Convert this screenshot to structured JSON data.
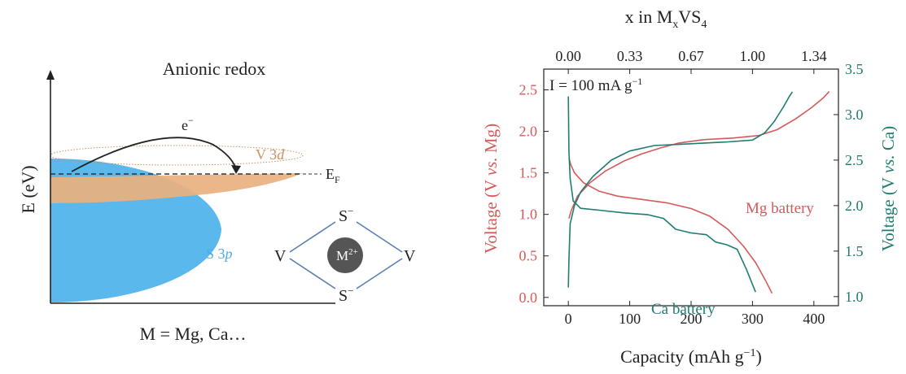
{
  "diagram": {
    "title": "Anionic redox",
    "ylabel": "E (eV)",
    "xlabel": "M = Mg, Ca…",
    "electron_label": "e",
    "electron_sup": "−",
    "v3d_label_main": "V 3",
    "v3d_label_italic": "d",
    "s3p_label_main": "S 3",
    "s3p_label_italic": "p",
    "fermi_label": "E",
    "fermi_sub": "F",
    "structure": {
      "s_top": "S",
      "s_top_sup": "−",
      "s_bottom": "S",
      "s_bottom_sup": "−",
      "v_left": "V",
      "v_right": "V",
      "cation": "M",
      "cation_sup": "2+"
    },
    "colors": {
      "s3p": "#5bb8ec",
      "v3d": "#e9b07e",
      "v3d_label": "#c89060",
      "s3p_label": "#4aaee4",
      "cation": "#555555",
      "bonds": "#5a7fb0"
    }
  },
  "chart_data": {
    "type": "line",
    "annotation": "I = 100 mA g",
    "annotation_sup": "−1",
    "xlabel": "Capacity (mAh g",
    "xlabel_sup": "−1",
    "xlabel_end": ")",
    "top_xlabel": "x in M",
    "top_xlabel_sub": "x",
    "top_xlabel_end": "VS",
    "top_xlabel_sub2": "4",
    "ylabel_left_pre": "Voltage (V ",
    "ylabel_left_italic": "vs.",
    "ylabel_left_post": " Mg)",
    "ylabel_right_pre": "Voltage (V ",
    "ylabel_right_italic": "vs.",
    "ylabel_right_post": " Ca)",
    "xlim": [
      -40,
      440
    ],
    "ylim_left": [
      -0.1,
      2.75
    ],
    "ylim_right": [
      0.9,
      3.5
    ],
    "x_ticks": [
      0,
      100,
      200,
      300,
      400
    ],
    "y_left_ticks": [
      "0.0",
      "0.5",
      "1.0",
      "1.5",
      "2.0",
      "2.5"
    ],
    "y_right_ticks": [
      "1.0",
      "1.5",
      "2.0",
      "2.5",
      "3.0",
      "3.5"
    ],
    "top_ticks": [
      {
        "label": "0.00",
        "x": 0
      },
      {
        "label": "0.33",
        "x": 100
      },
      {
        "label": "0.67",
        "x": 200
      },
      {
        "label": "1.00",
        "x": 300
      },
      {
        "label": "1.34",
        "x": 400
      }
    ],
    "series": [
      {
        "name": "Mg battery",
        "axis": "left",
        "color": "#d65a5a",
        "discharge": [
          [
            1,
            1.68
          ],
          [
            4,
            1.6
          ],
          [
            10,
            1.5
          ],
          [
            25,
            1.38
          ],
          [
            50,
            1.28
          ],
          [
            80,
            1.22
          ],
          [
            120,
            1.18
          ],
          [
            160,
            1.14
          ],
          [
            200,
            1.07
          ],
          [
            230,
            0.98
          ],
          [
            260,
            0.82
          ],
          [
            285,
            0.62
          ],
          [
            305,
            0.42
          ],
          [
            320,
            0.22
          ],
          [
            332,
            0.05
          ]
        ],
        "charge": [
          [
            1,
            0.95
          ],
          [
            5,
            1.05
          ],
          [
            15,
            1.22
          ],
          [
            35,
            1.38
          ],
          [
            60,
            1.52
          ],
          [
            90,
            1.64
          ],
          [
            120,
            1.73
          ],
          [
            150,
            1.8
          ],
          [
            180,
            1.86
          ],
          [
            220,
            1.9
          ],
          [
            270,
            1.92
          ],
          [
            310,
            1.95
          ],
          [
            340,
            2.02
          ],
          [
            370,
            2.15
          ],
          [
            395,
            2.28
          ],
          [
            415,
            2.4
          ],
          [
            425,
            2.48
          ]
        ]
      },
      {
        "name": "Ca battery",
        "axis": "right",
        "color": "#1e7d70",
        "discharge": [
          [
            0,
            3.2
          ],
          [
            1,
            2.6
          ],
          [
            3,
            2.3
          ],
          [
            8,
            2.05
          ],
          [
            20,
            1.97
          ],
          [
            50,
            1.95
          ],
          [
            90,
            1.92
          ],
          [
            130,
            1.9
          ],
          [
            155,
            1.86
          ],
          [
            175,
            1.74
          ],
          [
            200,
            1.7
          ],
          [
            225,
            1.68
          ],
          [
            240,
            1.6
          ],
          [
            258,
            1.57
          ],
          [
            275,
            1.52
          ],
          [
            290,
            1.3
          ],
          [
            305,
            1.05
          ]
        ],
        "charge": [
          [
            0,
            1.1
          ],
          [
            1,
            1.4
          ],
          [
            3,
            1.8
          ],
          [
            10,
            2.0
          ],
          [
            20,
            2.15
          ],
          [
            40,
            2.32
          ],
          [
            70,
            2.5
          ],
          [
            100,
            2.6
          ],
          [
            140,
            2.66
          ],
          [
            200,
            2.68
          ],
          [
            260,
            2.7
          ],
          [
            300,
            2.72
          ],
          [
            320,
            2.8
          ],
          [
            335,
            2.92
          ],
          [
            350,
            3.08
          ],
          [
            360,
            3.2
          ],
          [
            365,
            3.25
          ]
        ]
      }
    ],
    "series_labels": {
      "mg": "Mg battery",
      "ca": "Ca battery"
    }
  }
}
